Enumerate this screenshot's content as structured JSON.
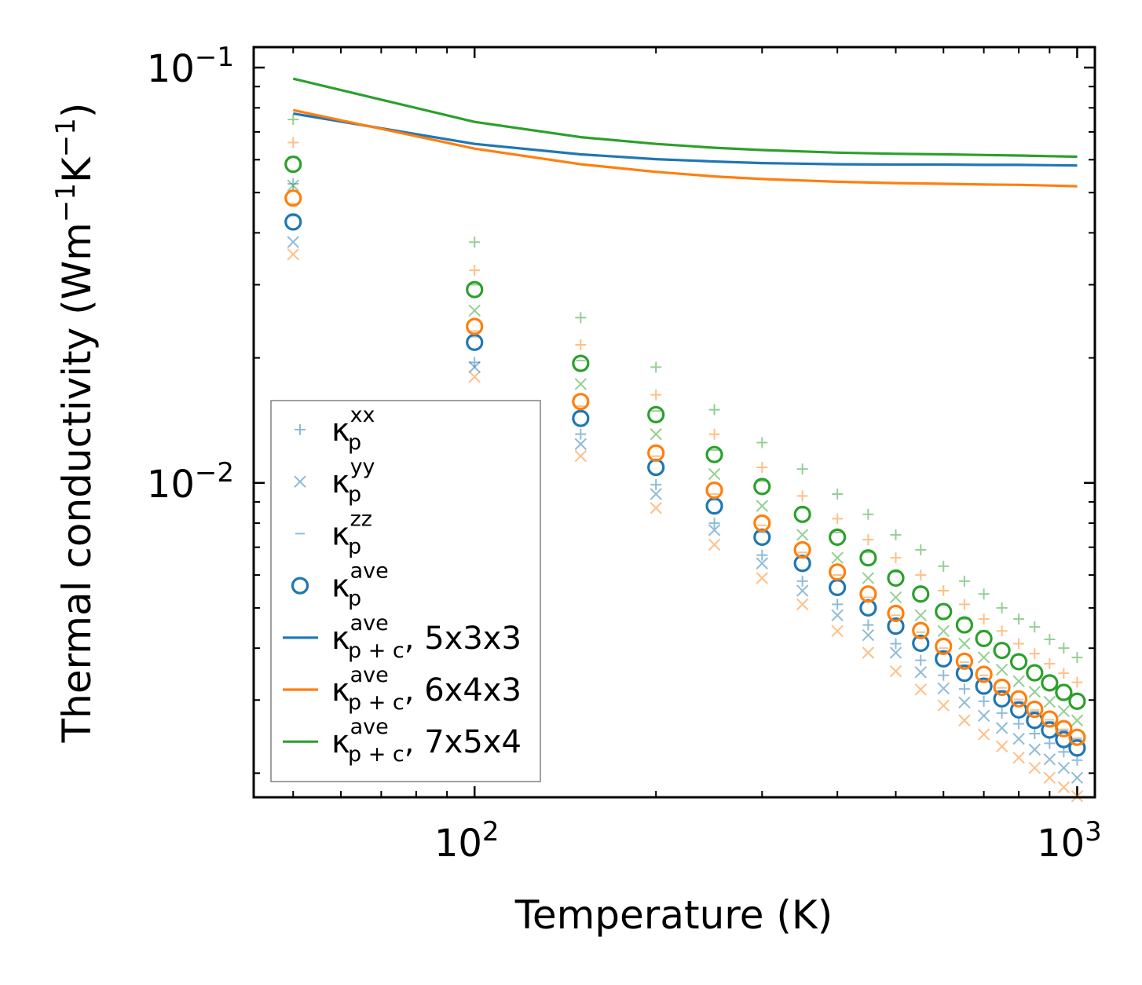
{
  "chart_data": {
    "type": "scatter",
    "xscale": "log",
    "yscale": "log",
    "xlim": [
      43,
      1070
    ],
    "ylim": [
      0.00175,
      0.112
    ],
    "xlabel": "Temperature (K)",
    "ylabel_parts": {
      "main": "Thermal conductivity (Wm",
      "sup1": "−1",
      "mid": "K",
      "sup2": "−1",
      "end": ")"
    },
    "xticks": [
      {
        "value": 100,
        "base": "10",
        "exp": "2"
      },
      {
        "value": 1000,
        "base": "10",
        "exp": "3"
      }
    ],
    "yticks": [
      {
        "value": 0.01,
        "base": "10",
        "exp": "−2"
      },
      {
        "value": 0.1,
        "base": "10",
        "exp": "−1"
      }
    ],
    "colors": {
      "blue": "#1f77b4",
      "orange": "#ff7f0e",
      "green": "#2ca02c"
    },
    "temperatures": [
      50,
      100,
      150,
      200,
      250,
      300,
      350,
      400,
      450,
      500,
      550,
      600,
      650,
      700,
      750,
      800,
      850,
      900,
      950,
      1000
    ],
    "scatter_series": [
      {
        "name": "kp_xx_5x3x3",
        "marker": "plus",
        "color": "#1f77b4",
        "values": [
          0.0525,
          0.0195,
          0.0131,
          0.0099,
          0.008,
          0.0067,
          0.0058,
          0.0051,
          0.00455,
          0.0041,
          0.00374,
          0.00344,
          0.00319,
          0.00298,
          0.00279,
          0.00263,
          0.00249,
          0.00236,
          0.00225,
          0.00215
        ]
      },
      {
        "name": "kp_yy_5x3x3",
        "marker": "x",
        "color": "#1f77b4",
        "values": [
          0.038,
          0.019,
          0.0124,
          0.0094,
          0.0077,
          0.0064,
          0.0055,
          0.0048,
          0.0043,
          0.0039,
          0.0035,
          0.0032,
          0.00296,
          0.00275,
          0.00257,
          0.00242,
          0.00228,
          0.00216,
          0.00206,
          0.00195
        ]
      },
      {
        "name": "kp_zz_5x3x3",
        "marker": "dash",
        "color": "#1f77b4",
        "values": [
          0.044,
          0.0225,
          0.0148,
          0.0113,
          0.0091,
          0.0076,
          0.0066,
          0.0058,
          0.0052,
          0.0047,
          0.00428,
          0.00393,
          0.00364,
          0.00338,
          0.00316,
          0.00297,
          0.00281,
          0.00266,
          0.00253,
          0.00241
        ]
      },
      {
        "name": "kp_ave_5x3x3",
        "marker": "circle",
        "color": "#1f77b4",
        "values": [
          0.0425,
          0.0218,
          0.0143,
          0.0109,
          0.0088,
          0.0074,
          0.0064,
          0.0056,
          0.005,
          0.00452,
          0.00411,
          0.00377,
          0.00348,
          0.00324,
          0.00302,
          0.00284,
          0.00268,
          0.00254,
          0.00241,
          0.0023
        ]
      },
      {
        "name": "kp_xx_6x4x3",
        "marker": "plus",
        "color": "#ff7f0e",
        "values": [
          0.066,
          0.0325,
          0.0215,
          0.0163,
          0.0131,
          0.0109,
          0.0093,
          0.0082,
          0.0073,
          0.0066,
          0.006,
          0.0055,
          0.0051,
          0.0047,
          0.0044,
          0.0041,
          0.00388,
          0.00367,
          0.00348,
          0.00331
        ]
      },
      {
        "name": "kp_yy_6x4x3",
        "marker": "x",
        "color": "#ff7f0e",
        "values": [
          0.0355,
          0.018,
          0.0116,
          0.0087,
          0.0071,
          0.0059,
          0.0051,
          0.0044,
          0.0039,
          0.00352,
          0.00318,
          0.00291,
          0.00268,
          0.00248,
          0.00232,
          0.00218,
          0.00206,
          0.00195,
          0.00185,
          0.00176
        ]
      },
      {
        "name": "kp_zz_6x4x3",
        "marker": "dash",
        "color": "#ff7f0e",
        "values": [
          0.047,
          0.0232,
          0.0153,
          0.0116,
          0.0094,
          0.0079,
          0.0068,
          0.006,
          0.0053,
          0.0048,
          0.00437,
          0.004,
          0.0037,
          0.00344,
          0.00321,
          0.00301,
          0.00284,
          0.00269,
          0.00255,
          0.00243
        ]
      },
      {
        "name": "kp_ave_6x4x3",
        "marker": "circle",
        "color": "#ff7f0e",
        "values": [
          0.0485,
          0.0238,
          0.0157,
          0.0118,
          0.0096,
          0.008,
          0.0069,
          0.0061,
          0.0054,
          0.00485,
          0.00441,
          0.00404,
          0.00372,
          0.00346,
          0.00322,
          0.00302,
          0.00285,
          0.0027,
          0.00256,
          0.00244
        ]
      },
      {
        "name": "kp_xx_7x5x4",
        "marker": "plus",
        "color": "#2ca02c",
        "values": [
          0.075,
          0.038,
          0.025,
          0.019,
          0.015,
          0.0125,
          0.0108,
          0.0094,
          0.0084,
          0.0075,
          0.0069,
          0.0063,
          0.0058,
          0.0054,
          0.005,
          0.0047,
          0.0045,
          0.0042,
          0.004,
          0.0038
        ]
      },
      {
        "name": "kp_yy_7x5x4",
        "marker": "x",
        "color": "#2ca02c",
        "values": [
          0.052,
          0.026,
          0.0173,
          0.0131,
          0.0105,
          0.0088,
          0.0075,
          0.0066,
          0.0059,
          0.0053,
          0.0048,
          0.0044,
          0.0041,
          0.0038,
          0.00355,
          0.00333,
          0.00314,
          0.00297,
          0.00282,
          0.00268
        ]
      },
      {
        "name": "kp_zz_7x5x4",
        "marker": "dash",
        "color": "#2ca02c",
        "values": [
          0.061,
          0.03,
          0.0197,
          0.0149,
          0.012,
          0.0101,
          0.0087,
          0.0076,
          0.0068,
          0.0061,
          0.0056,
          0.0051,
          0.0047,
          0.0044,
          0.0041,
          0.00385,
          0.00363,
          0.00343,
          0.00326,
          0.0031
        ]
      },
      {
        "name": "kp_ave_7x5x4",
        "marker": "circle",
        "color": "#2ca02c",
        "values": [
          0.0585,
          0.0292,
          0.0194,
          0.0146,
          0.0117,
          0.0098,
          0.0084,
          0.0074,
          0.0066,
          0.0059,
          0.0054,
          0.0049,
          0.00455,
          0.00422,
          0.00395,
          0.00371,
          0.00349,
          0.0033,
          0.00313,
          0.00298
        ]
      }
    ],
    "line_series": [
      {
        "name": "kp+c_ave_5x3x3",
        "color": "#1f77b4",
        "x": [
          50,
          100,
          150,
          200,
          250,
          300,
          400,
          500,
          600,
          700,
          800,
          900,
          1000
        ],
        "values": [
          0.0775,
          0.0655,
          0.0618,
          0.0602,
          0.0594,
          0.0589,
          0.0585,
          0.0584,
          0.0584,
          0.0583,
          0.0583,
          0.0582,
          0.0581
        ]
      },
      {
        "name": "kp+c_ave_6x4x3",
        "color": "#ff7f0e",
        "x": [
          50,
          100,
          150,
          200,
          250,
          300,
          400,
          500,
          600,
          700,
          800,
          900,
          1000
        ],
        "values": [
          0.079,
          0.0638,
          0.0585,
          0.0561,
          0.0547,
          0.0539,
          0.0531,
          0.0527,
          0.0525,
          0.0523,
          0.0522,
          0.052,
          0.0518
        ]
      },
      {
        "name": "kp+c_ave_7x5x4",
        "color": "#2ca02c",
        "x": [
          50,
          100,
          150,
          200,
          250,
          300,
          400,
          500,
          600,
          700,
          800,
          900,
          1000
        ],
        "values": [
          0.094,
          0.074,
          0.068,
          0.0655,
          0.0641,
          0.0633,
          0.0624,
          0.062,
          0.0618,
          0.0616,
          0.0614,
          0.0612,
          0.061
        ]
      }
    ],
    "legend": {
      "placement": "lower-left",
      "entries": [
        {
          "base": "κ",
          "sup": "xx",
          "sub": "p",
          "suffix": "",
          "marker": "plus"
        },
        {
          "base": "κ",
          "sup": "yy",
          "sub": "p",
          "suffix": "",
          "marker": "x"
        },
        {
          "base": "κ",
          "sup": "zz",
          "sub": "p",
          "suffix": "",
          "marker": "dash"
        },
        {
          "base": "κ",
          "sup": "ave",
          "sub": "p",
          "suffix": "",
          "marker": "circle"
        },
        {
          "base": "κ",
          "sup": "ave",
          "sub": "p + c",
          "suffix": ", 5x3x3",
          "marker": "line-blue"
        },
        {
          "base": "κ",
          "sup": "ave",
          "sub": "p + c",
          "suffix": ", 6x4x3",
          "marker": "line-orange"
        },
        {
          "base": "κ",
          "sup": "ave",
          "sub": "p + c",
          "suffix": ", 7x5x4",
          "marker": "line-green"
        }
      ]
    }
  }
}
